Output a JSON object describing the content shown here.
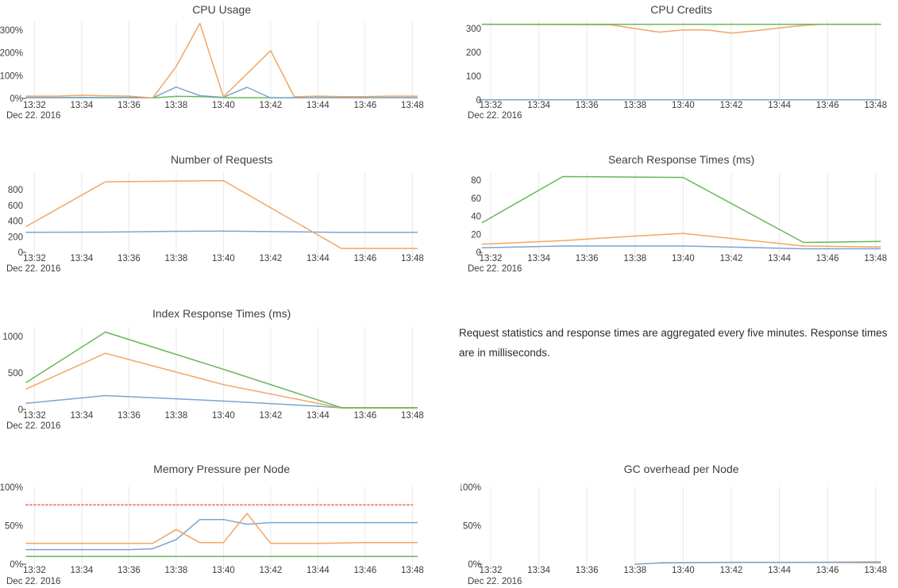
{
  "note": {
    "text": "Request statistics and response times are aggregated every five minutes. Response times are in milliseconds."
  },
  "palette": {
    "blue": "#79a6d2",
    "orange": "#f2a662",
    "green": "#67b859",
    "red": "#ed8585",
    "grid": "#e8e8e8",
    "title_color": "#3f3f3f",
    "tick_color": "#3c3c3c",
    "axis_tick": "#444444"
  },
  "x_axis": {
    "tick_minutes": [
      32,
      34,
      36,
      38,
      40,
      42,
      44,
      46,
      48
    ],
    "tick_labels": [
      "13:32",
      "13:34",
      "13:36",
      "13:38",
      "13:40",
      "13:42",
      "13:44",
      "13:46",
      "13:48"
    ],
    "date_label": "Dec 22. 2016"
  },
  "chart_data": [
    {
      "id": "cpu-usage",
      "type": "line",
      "title": "CPU Usage",
      "ylabel": "",
      "y_ticks": [
        {
          "v": 0,
          "label": "0%"
        },
        {
          "v": 100,
          "label": "100%"
        },
        {
          "v": 200,
          "label": "200%"
        },
        {
          "v": 300,
          "label": "300%"
        }
      ],
      "series": [
        {
          "name": "green",
          "color": "green",
          "points": [
            [
              31.65,
              3
            ],
            [
              36,
              3
            ],
            [
              37,
              2
            ],
            [
              38,
              9
            ],
            [
              39,
              8
            ],
            [
              40,
              3
            ],
            [
              48.2,
              3
            ]
          ]
        },
        {
          "name": "blue",
          "color": "blue",
          "points": [
            [
              31.65,
              4
            ],
            [
              33,
              4
            ],
            [
              34,
              5
            ],
            [
              35,
              4
            ],
            [
              36,
              4
            ],
            [
              37,
              2
            ],
            [
              38,
              50
            ],
            [
              39,
              12
            ],
            [
              40,
              5
            ],
            [
              41,
              49
            ],
            [
              42,
              2
            ],
            [
              44,
              3
            ],
            [
              48.2,
              3
            ]
          ]
        },
        {
          "name": "orange",
          "color": "orange",
          "points": [
            [
              31.65,
              10
            ],
            [
              33,
              10
            ],
            [
              34,
              14
            ],
            [
              35,
              11
            ],
            [
              36,
              10
            ],
            [
              37,
              2
            ],
            [
              38,
              140
            ],
            [
              39,
              330
            ],
            [
              40,
              7
            ],
            [
              42,
              210
            ],
            [
              43,
              7
            ],
            [
              44,
              10
            ],
            [
              45,
              8
            ],
            [
              46,
              8
            ],
            [
              47,
              10
            ],
            [
              48.2,
              10
            ]
          ]
        }
      ]
    },
    {
      "id": "cpu-credits",
      "type": "line",
      "title": "CPU Credits",
      "ylabel": "",
      "y_ticks": [
        {
          "v": 0,
          "label": "0"
        },
        {
          "v": 100,
          "label": "100"
        },
        {
          "v": 200,
          "label": "200"
        },
        {
          "v": 300,
          "label": "300"
        }
      ],
      "series": [
        {
          "name": "blue",
          "color": "blue",
          "points": [
            [
              31.65,
              1
            ],
            [
              48.2,
              1
            ]
          ]
        },
        {
          "name": "orange",
          "color": "orange",
          "points": [
            [
              31.65,
              318
            ],
            [
              37,
              316
            ],
            [
              38,
              300
            ],
            [
              39,
              285
            ],
            [
              40,
              294
            ],
            [
              41,
              294
            ],
            [
              42,
              281
            ],
            [
              43,
              291
            ],
            [
              44,
              303
            ],
            [
              45,
              313
            ],
            [
              45.7,
              318
            ],
            [
              48.2,
              318
            ]
          ]
        },
        {
          "name": "green",
          "color": "green",
          "points": [
            [
              31.65,
              318
            ],
            [
              48.2,
              318
            ]
          ]
        }
      ]
    },
    {
      "id": "requests",
      "type": "line",
      "title": "Number of Requests",
      "ylabel": "",
      "y_ticks": [
        {
          "v": 0,
          "label": "0"
        },
        {
          "v": 200,
          "label": "200"
        },
        {
          "v": 400,
          "label": "400"
        },
        {
          "v": 600,
          "label": "600"
        },
        {
          "v": 800,
          "label": "800"
        }
      ],
      "series": [
        {
          "name": "blue",
          "color": "blue",
          "points": [
            [
              31.65,
              255
            ],
            [
              35,
              258
            ],
            [
              38,
              268
            ],
            [
              40,
              270
            ],
            [
              43,
              262
            ],
            [
              45,
              254
            ],
            [
              48.2,
              255
            ]
          ]
        },
        {
          "name": "orange",
          "color": "orange",
          "points": [
            [
              31.65,
              330
            ],
            [
              35,
              900
            ],
            [
              40,
              915
            ],
            [
              45,
              50
            ],
            [
              48.2,
              50
            ]
          ]
        }
      ]
    },
    {
      "id": "search",
      "type": "line",
      "title": "Search Response Times (ms)",
      "ylabel": "",
      "y_ticks": [
        {
          "v": 0,
          "label": "0"
        },
        {
          "v": 20,
          "label": "20"
        },
        {
          "v": 40,
          "label": "40"
        },
        {
          "v": 60,
          "label": "60"
        },
        {
          "v": 80,
          "label": "80"
        }
      ],
      "series": [
        {
          "name": "blue",
          "color": "blue",
          "points": [
            [
              31.65,
              5
            ],
            [
              35,
              7
            ],
            [
              40,
              7
            ],
            [
              45,
              4
            ],
            [
              48.2,
              4
            ]
          ]
        },
        {
          "name": "orange",
          "color": "orange",
          "points": [
            [
              31.65,
              9
            ],
            [
              35,
              13
            ],
            [
              38,
              18
            ],
            [
              40,
              21
            ],
            [
              45,
              7
            ],
            [
              48.2,
              6
            ]
          ]
        },
        {
          "name": "green",
          "color": "green",
          "points": [
            [
              31.65,
              33
            ],
            [
              35,
              84
            ],
            [
              40,
              83
            ],
            [
              45,
              11
            ],
            [
              48.2,
              12
            ]
          ]
        }
      ]
    },
    {
      "id": "index",
      "type": "line",
      "title": "Index Response Times (ms)",
      "ylabel": "",
      "y_ticks": [
        {
          "v": 0,
          "label": "0"
        },
        {
          "v": 500,
          "label": "500"
        },
        {
          "v": 1000,
          "label": "1000"
        }
      ],
      "series": [
        {
          "name": "blue",
          "color": "blue",
          "points": [
            [
              31.65,
              85
            ],
            [
              35,
              190
            ],
            [
              40,
              115
            ],
            [
              44,
              45
            ],
            [
              45,
              22
            ],
            [
              48.2,
              22
            ]
          ]
        },
        {
          "name": "orange",
          "color": "orange",
          "points": [
            [
              31.65,
              280
            ],
            [
              35,
              770
            ],
            [
              40,
              340
            ],
            [
              45,
              20
            ],
            [
              48.2,
              20
            ]
          ]
        },
        {
          "name": "green",
          "color": "green",
          "points": [
            [
              31.65,
              370
            ],
            [
              35,
              1060
            ],
            [
              40,
              550
            ],
            [
              45,
              25
            ],
            [
              48.2,
              25
            ]
          ]
        }
      ]
    },
    {
      "id": "memory",
      "type": "line",
      "title": "Memory Pressure per Node",
      "ylabel": "",
      "y_ticks": [
        {
          "v": 0,
          "label": "0%"
        },
        {
          "v": 50,
          "label": "50%"
        },
        {
          "v": 100,
          "label": "100%"
        }
      ],
      "series": [
        {
          "name": "green",
          "color": "green",
          "points": [
            [
              31.65,
              10
            ],
            [
              48.2,
              10
            ]
          ]
        },
        {
          "name": "blue",
          "color": "blue",
          "points": [
            [
              31.65,
              19
            ],
            [
              36,
              19
            ],
            [
              37,
              20
            ],
            [
              38,
              32
            ],
            [
              39,
              58
            ],
            [
              40,
              58
            ],
            [
              41,
              52
            ],
            [
              42,
              54
            ],
            [
              48.2,
              54
            ]
          ]
        },
        {
          "name": "orange",
          "color": "orange",
          "points": [
            [
              31.65,
              27
            ],
            [
              37,
              27
            ],
            [
              38,
              45
            ],
            [
              39,
              28
            ],
            [
              40,
              28
            ],
            [
              41,
              66
            ],
            [
              42,
              27
            ],
            [
              44,
              27
            ],
            [
              46,
              28
            ],
            [
              48.2,
              28
            ]
          ]
        },
        {
          "name": "threshold",
          "color": "red",
          "dashed": true,
          "points": [
            [
              31.65,
              77
            ],
            [
              48,
              77
            ]
          ]
        }
      ]
    },
    {
      "id": "gc",
      "type": "line",
      "title": "GC overhead per Node",
      "ylabel": "",
      "y_ticks": [
        {
          "v": 0,
          "label": "0%"
        },
        {
          "v": 50,
          "label": "50%"
        },
        {
          "v": 100,
          "label": "100%"
        }
      ],
      "series": [
        {
          "name": "orange",
          "color": "orange",
          "points": [
            [
              39,
              2
            ],
            [
              42,
              2.2
            ],
            [
              46,
              2.2
            ],
            [
              48.2,
              1.7
            ]
          ]
        },
        {
          "name": "blue",
          "color": "blue",
          "points": [
            [
              38,
              0
            ],
            [
              39,
              1.5
            ],
            [
              40,
              2
            ],
            [
              42,
              2.5
            ],
            [
              45,
              2.5
            ],
            [
              48.2,
              3
            ]
          ]
        }
      ]
    }
  ]
}
